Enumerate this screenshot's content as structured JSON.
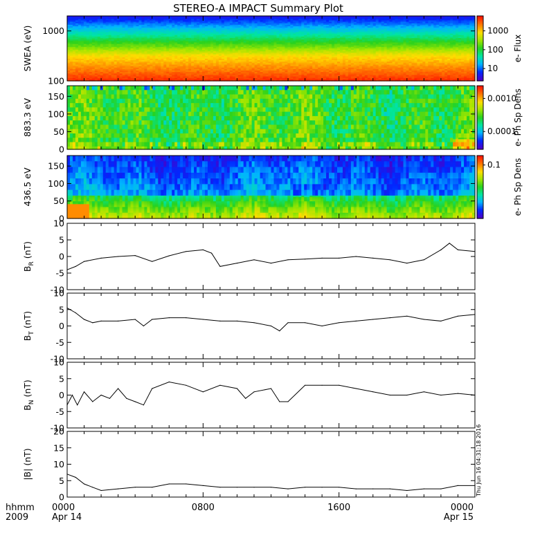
{
  "page": {
    "title": "STEREO-A IMPACT Summary Plot",
    "footer": {
      "time_label": "hhmm",
      "year_label": "2009",
      "x_ticks": [
        "0000",
        "0800",
        "1600",
        "0000"
      ],
      "x_dates": [
        "Apr 14",
        "",
        "",
        "Apr 15"
      ],
      "timestamp": "Thu Jun 16 04:31:18 2016"
    }
  },
  "colors": {
    "frame": "#000000",
    "trace": "#000000",
    "spectrogram_scale": [
      "#4b00c8",
      "#0028ff",
      "#00b4ff",
      "#00e6a0",
      "#28d21e",
      "#a0e600",
      "#ffdc00",
      "#ff7800",
      "#ff1400"
    ]
  },
  "chart_data": [
    {
      "type": "heatmap",
      "ylabel": "SWEA (eV)",
      "yscale": "log",
      "ylim": [
        100,
        2000
      ],
      "yticks": [
        "1000",
        "100"
      ],
      "colorbar_label": "e- Flux",
      "colorbar_ticks": [
        "1000",
        "100",
        "10"
      ],
      "profile": "energy_spectrum"
    },
    {
      "type": "heatmap",
      "ylabel": "883.3 eV",
      "ylim": [
        0,
        180
      ],
      "yticks": [
        "150",
        "100",
        "50",
        "0"
      ],
      "colorbar_label": "e- Ph Sp Dens",
      "colorbar_ticks": [
        "0.0010",
        "0.0001"
      ],
      "profile": "pitch_high"
    },
    {
      "type": "heatmap",
      "ylabel": "436.5 eV",
      "ylim": [
        0,
        180
      ],
      "yticks": [
        "150",
        "100",
        "50",
        "0"
      ],
      "colorbar_label": "e- Ph Sp Dens",
      "colorbar_ticks": [
        "0.1"
      ],
      "profile": "pitch_low"
    },
    {
      "type": "line",
      "ylabel": "B",
      "ylabel_sub": "R",
      "ylabel_unit": " (nT)",
      "ylim": [
        -10,
        10
      ],
      "yticks": [
        "10",
        "5",
        "0",
        "-5",
        "-10"
      ],
      "x": [
        0,
        0.5,
        1,
        2,
        3,
        4,
        5,
        6,
        7,
        8,
        8.5,
        9,
        10,
        11,
        12,
        13,
        14,
        15,
        16,
        17,
        18,
        19,
        20,
        21,
        22,
        22.5,
        23,
        24
      ],
      "y": [
        -4,
        -3,
        -1.5,
        -0.5,
        0,
        0.3,
        -1.5,
        0.2,
        1.5,
        2,
        1,
        -3,
        -2,
        -1,
        -2,
        -1,
        -0.8,
        -0.5,
        -0.5,
        0,
        -0.5,
        -1,
        -2,
        -1,
        2,
        4,
        2,
        1.5
      ]
    },
    {
      "type": "line",
      "ylabel": "B",
      "ylabel_sub": "T",
      "ylabel_unit": " (nT)",
      "ylim": [
        -10,
        10
      ],
      "yticks": [
        "10",
        "5",
        "0",
        "-5",
        "-10"
      ],
      "x": [
        0,
        0.5,
        1,
        1.5,
        2,
        3,
        4,
        4.5,
        5,
        6,
        7,
        8,
        9,
        10,
        11,
        12,
        12.5,
        13,
        14,
        15,
        16,
        17,
        18,
        19,
        20,
        21,
        22,
        23,
        24
      ],
      "y": [
        5.5,
        4,
        2,
        1,
        1.5,
        1.5,
        2,
        0,
        2,
        2.5,
        2.5,
        2,
        1.5,
        1.5,
        1,
        0,
        -1.5,
        1,
        1,
        0,
        1,
        1.5,
        2,
        2.5,
        3,
        2,
        1.5,
        3,
        3.5
      ]
    },
    {
      "type": "line",
      "ylabel": "B",
      "ylabel_sub": "N",
      "ylabel_unit": " (nT)",
      "ylim": [
        -10,
        10
      ],
      "yticks": [
        "10",
        "5",
        "0",
        "-5",
        "-10"
      ],
      "x": [
        0,
        0.3,
        0.6,
        1,
        1.5,
        2,
        2.5,
        3,
        3.5,
        4,
        4.5,
        5,
        6,
        7,
        8,
        9,
        10,
        10.5,
        11,
        12,
        12.5,
        13,
        14,
        15,
        16,
        17,
        18,
        19,
        20,
        21,
        22,
        23,
        24
      ],
      "y": [
        -3,
        0,
        -3,
        1,
        -2,
        0,
        -1,
        2,
        -1,
        -2,
        -3,
        2,
        4,
        3,
        1,
        3,
        2,
        -1,
        1,
        2,
        -2,
        -2,
        3,
        3,
        3,
        2,
        1,
        0,
        0,
        1,
        0,
        0.5,
        0
      ]
    },
    {
      "type": "line",
      "ylabel": "|B|",
      "ylabel_sub": "",
      "ylabel_unit": " (nT)",
      "ylim": [
        0,
        20
      ],
      "yticks": [
        "20",
        "15",
        "10",
        "5",
        "0"
      ],
      "x": [
        0,
        0.5,
        1,
        1.5,
        2,
        3,
        4,
        5,
        6,
        7,
        8,
        9,
        10,
        11,
        12,
        13,
        14,
        15,
        16,
        17,
        18,
        19,
        20,
        21,
        22,
        23,
        24
      ],
      "y": [
        7,
        6,
        4,
        3,
        2,
        2.5,
        3,
        3,
        4,
        4,
        3.5,
        3,
        3,
        3,
        3,
        2.5,
        3,
        3,
        3,
        2.5,
        2.5,
        2.5,
        2,
        2.5,
        2.5,
        3.5,
        3.5
      ]
    }
  ]
}
